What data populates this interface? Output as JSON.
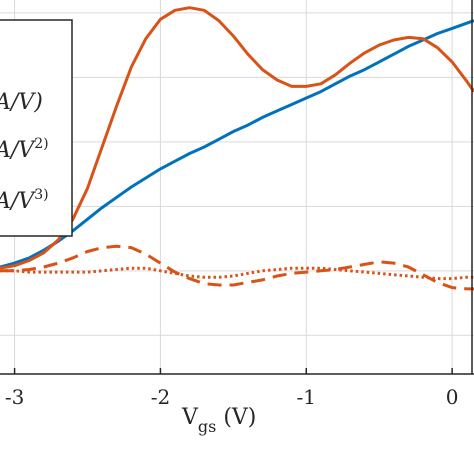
{
  "chart_data": {
    "type": "line",
    "xlabel": "V",
    "xlabel_sub": "gs",
    "xlabel_unit": " (V)",
    "x_ticks": [
      -3,
      -2,
      -1,
      0
    ],
    "x_tick_labels": [
      "-3",
      "-2",
      "-1",
      "0"
    ],
    "xlim": [
      -3.1,
      0.15
    ],
    "ylim": [
      -0.8,
      2.1
    ],
    "grid": true,
    "legend_position": "top-left",
    "legend_entries": [
      {
        "text": "A/V)",
        "suffix": ""
      },
      {
        "text": "A/V",
        "suffix": "2)"
      },
      {
        "text": "A/V",
        "suffix": "3)"
      }
    ],
    "colors": {
      "blue": "#0072BD",
      "orange": "#D95319",
      "grid": "#d9d9d9",
      "axis": "#262626"
    },
    "series": [
      {
        "style": "solid",
        "color": "#0072BD",
        "x": [
          -3.1,
          -3.0,
          -2.9,
          -2.8,
          -2.7,
          -2.6,
          -2.5,
          -2.4,
          -2.3,
          -2.2,
          -2.1,
          -2.0,
          -1.9,
          -1.8,
          -1.7,
          -1.6,
          -1.5,
          -1.4,
          -1.3,
          -1.2,
          -1.1,
          -1.0,
          -0.9,
          -0.8,
          -0.7,
          -0.6,
          -0.5,
          -0.4,
          -0.3,
          -0.2,
          -0.1,
          0.0,
          0.1,
          0.15
        ],
        "y": [
          0.03,
          0.06,
          0.1,
          0.16,
          0.23,
          0.31,
          0.4,
          0.49,
          0.57,
          0.65,
          0.72,
          0.79,
          0.85,
          0.91,
          0.96,
          1.02,
          1.08,
          1.13,
          1.19,
          1.24,
          1.29,
          1.34,
          1.39,
          1.45,
          1.51,
          1.56,
          1.62,
          1.68,
          1.74,
          1.79,
          1.84,
          1.88,
          1.92,
          1.94
        ]
      },
      {
        "style": "solid",
        "color": "#D95319",
        "x": [
          -3.1,
          -3.0,
          -2.9,
          -2.8,
          -2.7,
          -2.6,
          -2.5,
          -2.4,
          -2.3,
          -2.2,
          -2.1,
          -2.0,
          -1.9,
          -1.8,
          -1.7,
          -1.6,
          -1.5,
          -1.4,
          -1.3,
          -1.2,
          -1.1,
          -1.0,
          -0.9,
          -0.8,
          -0.7,
          -0.6,
          -0.5,
          -0.4,
          -0.3,
          -0.2,
          -0.1,
          0.0,
          0.1,
          0.15
        ],
        "y": [
          0.02,
          0.04,
          0.08,
          0.14,
          0.24,
          0.4,
          0.64,
          0.96,
          1.28,
          1.58,
          1.8,
          1.95,
          2.02,
          2.04,
          2.02,
          1.94,
          1.82,
          1.68,
          1.56,
          1.48,
          1.43,
          1.43,
          1.45,
          1.52,
          1.61,
          1.69,
          1.75,
          1.79,
          1.81,
          1.8,
          1.73,
          1.62,
          1.47,
          1.39
        ]
      },
      {
        "style": "dashed",
        "color": "#D95319",
        "x": [
          -3.1,
          -3.0,
          -2.9,
          -2.8,
          -2.7,
          -2.6,
          -2.5,
          -2.4,
          -2.3,
          -2.2,
          -2.1,
          -2.0,
          -1.9,
          -1.8,
          -1.7,
          -1.6,
          -1.5,
          -1.4,
          -1.3,
          -1.2,
          -1.1,
          -1.0,
          -0.9,
          -0.8,
          -0.7,
          -0.6,
          -0.5,
          -0.4,
          -0.3,
          -0.2,
          -0.1,
          0.0,
          0.1,
          0.15
        ],
        "y": [
          0.0,
          0.0,
          0.01,
          0.03,
          0.06,
          0.1,
          0.15,
          0.18,
          0.19,
          0.18,
          0.13,
          0.06,
          -0.01,
          -0.06,
          -0.1,
          -0.11,
          -0.11,
          -0.09,
          -0.07,
          -0.04,
          -0.02,
          -0.01,
          0.0,
          0.01,
          0.03,
          0.05,
          0.07,
          0.06,
          0.03,
          -0.03,
          -0.09,
          -0.13,
          -0.14,
          -0.14
        ]
      },
      {
        "style": "dotted",
        "color": "#D95319",
        "x": [
          -3.1,
          -3.0,
          -2.9,
          -2.8,
          -2.7,
          -2.6,
          -2.5,
          -2.4,
          -2.3,
          -2.2,
          -2.1,
          -2.0,
          -1.9,
          -1.8,
          -1.7,
          -1.6,
          -1.5,
          -1.4,
          -1.3,
          -1.2,
          -1.1,
          -1.0,
          -0.9,
          -0.8,
          -0.7,
          -0.6,
          -0.5,
          -0.4,
          -0.3,
          -0.2,
          -0.1,
          0.0,
          0.1,
          0.15
        ],
        "y": [
          0.0,
          0.0,
          -0.01,
          -0.01,
          -0.01,
          -0.01,
          -0.01,
          0.0,
          0.01,
          0.02,
          0.02,
          0.0,
          -0.02,
          -0.04,
          -0.05,
          -0.05,
          -0.04,
          -0.02,
          0.0,
          0.01,
          0.02,
          0.02,
          0.02,
          0.01,
          0.0,
          -0.01,
          -0.02,
          -0.03,
          -0.04,
          -0.05,
          -0.06,
          -0.06,
          -0.05,
          -0.05
        ]
      }
    ]
  }
}
